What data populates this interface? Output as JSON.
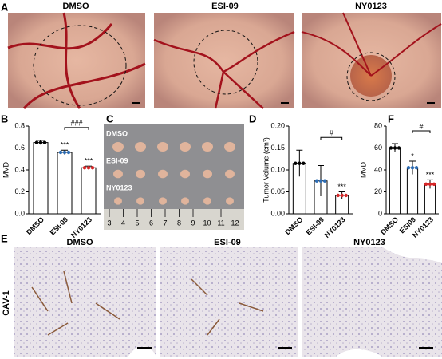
{
  "panels": {
    "A": {
      "label": "A",
      "titles": [
        "DMSO",
        "ESI-09",
        "NY0123"
      ]
    },
    "C": {
      "label": "C",
      "rows": [
        "DMSO",
        "ESI-09",
        "NY0123"
      ],
      "ruler": [
        "3",
        "4",
        "5",
        "6",
        "7",
        "8",
        "9",
        "10",
        "11",
        "12"
      ]
    },
    "E": {
      "label": "E",
      "titles": [
        "DMSO",
        "ESI-09",
        "NY0123"
      ],
      "ylabel": "CAV-1"
    }
  },
  "chart_data": [
    {
      "type": "bar",
      "panel": "B",
      "ylabel": "MVD",
      "categories": [
        "DMSO",
        "ESI-09",
        "NY0123"
      ],
      "values": [
        0.65,
        0.56,
        0.42
      ],
      "errors": [
        0.02,
        0.02,
        0.015
      ],
      "colors": [
        "#000000",
        "#2e6db4",
        "#d62728"
      ],
      "ylim": [
        0,
        0.8
      ],
      "yticks": [
        {
          "value": 0,
          "label": "0.0"
        },
        0.2,
        0.4,
        0.6,
        0.8
      ],
      "stars": [
        null,
        "***",
        "***"
      ],
      "bracket": "###"
    },
    {
      "type": "bar",
      "panel": "D",
      "ylabel": "Tumor Volume (cm³)",
      "categories": [
        "DMSO",
        "ESI-09",
        "NY0123"
      ],
      "values": [
        0.115,
        0.075,
        0.042
      ],
      "errors": [
        0.03,
        0.035,
        0.008
      ],
      "colors": [
        "#000000",
        "#2e6db4",
        "#d62728"
      ],
      "ylim": [
        0,
        0.2
      ],
      "yticks": [
        {
          "value": 0,
          "label": "0.00"
        },
        {
          "value": 0.05,
          "label": "0.05"
        },
        {
          "value": 0.1,
          "label": "0.10"
        },
        {
          "value": 0.15,
          "label": "0.15"
        },
        {
          "value": 0.2,
          "label": "0.20"
        }
      ],
      "stars": [
        null,
        null,
        "***"
      ],
      "bracket": "#"
    },
    {
      "type": "bar",
      "panel": "F",
      "ylabel": "MVD",
      "categories": [
        "DMSO",
        "ESI09",
        "NY0123"
      ],
      "values": [
        60,
        42,
        27
      ],
      "errors": [
        4,
        6,
        4
      ],
      "colors": [
        "#000000",
        "#2e6db4",
        "#d62728"
      ],
      "ylim": [
        0,
        80
      ],
      "yticks": [
        0,
        20,
        40,
        60,
        80
      ],
      "stars": [
        null,
        "*",
        "***"
      ],
      "bracket": "#"
    }
  ]
}
